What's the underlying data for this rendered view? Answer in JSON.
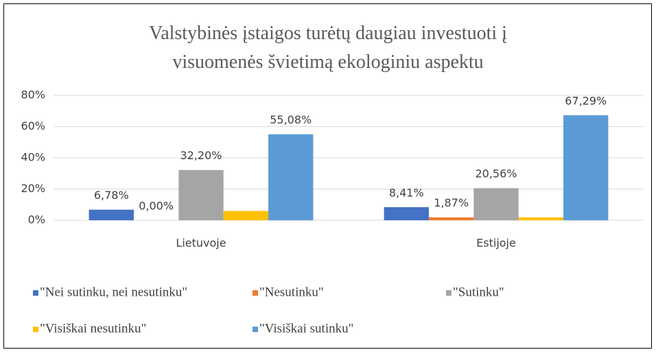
{
  "chart_data": {
    "type": "bar",
    "title": "Valstybinės įstaigos turėtų daugiau investuoti į visuomenės švietimą ekologiniu aspektu",
    "categories": [
      "Lietuvoje",
      "Estijoje"
    ],
    "series": [
      {
        "name": "\"Nei sutinku, nei nesutinku\"",
        "color": "#4472c4",
        "values": [
          6.78,
          8.41
        ],
        "value_labels": [
          "6,78%",
          "8,41%"
        ]
      },
      {
        "name": "\"Nesutinku\"",
        "color": "#ed7d31",
        "values": [
          0,
          1.87
        ],
        "value_labels": [
          "0,00%",
          "1,87%"
        ]
      },
      {
        "name": "\"Sutinku\"",
        "color": "#a5a5a5",
        "values": [
          32.2,
          20.56
        ],
        "value_labels": [
          "32,20%",
          "20,56%"
        ]
      },
      {
        "name": "\"Visiškai nesutinku\"",
        "color": "#ffc000",
        "values": [
          5.94,
          1.87
        ]
      },
      {
        "name": "\"Visiškai sutinku\"",
        "color": "#5b9bd5",
        "values": [
          55.08,
          67.29
        ],
        "value_labels": [
          "55,08%",
          "67,29%"
        ]
      }
    ],
    "ylim": [
      0,
      80
    ],
    "yticks": [
      {
        "value": 0,
        "label": "0%"
      },
      {
        "value": 20,
        "label": "20%"
      },
      {
        "value": 40,
        "label": "40%"
      },
      {
        "value": 60,
        "label": "60%"
      },
      {
        "value": 80,
        "label": "80%"
      }
    ],
    "grid": true,
    "legend": "bottom"
  }
}
